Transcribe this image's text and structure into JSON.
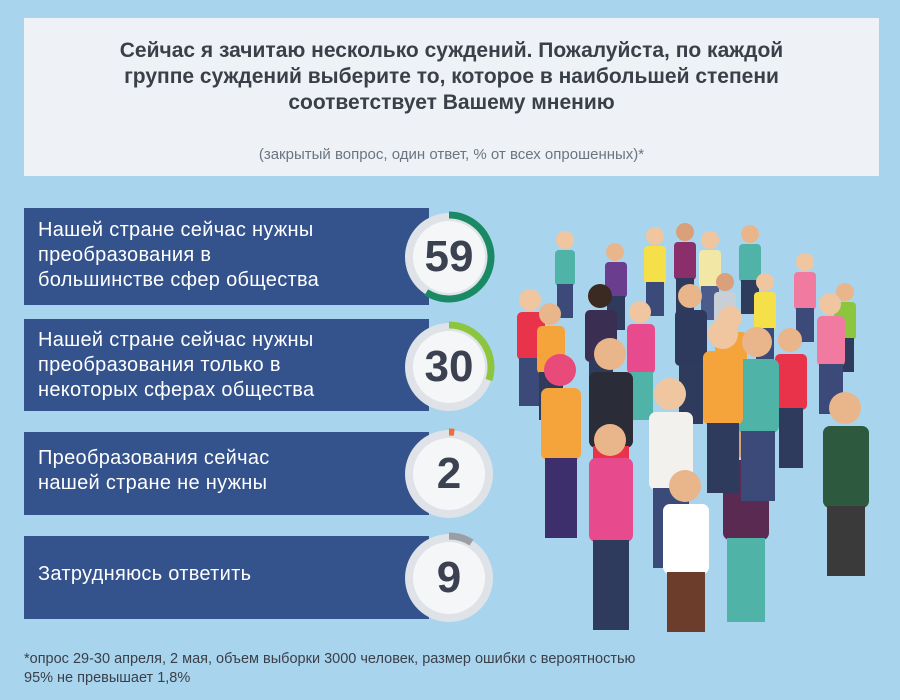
{
  "header": {
    "title": "Сейчас я зачитаю несколько суждений. Пожалуйста, по каждой\nгруппе суждений выберите то, которое в наибольшей степени\nсоответствует Вашему мнению",
    "subtitle": "(закрытый вопрос, один ответ, % от всех опрошенных)*"
  },
  "chart_data": {
    "type": "bar",
    "categories": [
      "Нашей стране сейчас нужны преобразования в большинстве сфер общества",
      "Нашей стране сейчас нужны преобразования только в некоторых сферах общества",
      "Преобразования сейчас нашей стране не нужны",
      "Затрудняюсь ответить"
    ],
    "values": [
      59,
      30,
      2,
      9
    ],
    "ring_colors": [
      "#1a8a64",
      "#8cc63f",
      "#f26b3a",
      "#9a9fa5"
    ]
  },
  "rows": [
    {
      "label": "Нашей стране сейчас нужны\nпреобразования в\nбольшинстве сфер общества",
      "value": "59"
    },
    {
      "label": "Нашей стране сейчас нужны\nпреобразования только в\nнекоторых сферах общества",
      "value": "30"
    },
    {
      "label": "Преобразования сейчас\nнашей стране не нужны",
      "value": "2"
    },
    {
      "label": "Затрудняюсь ответить",
      "value": "9"
    }
  ],
  "footnote": "*опрос 29-30 апреля, 2 мая, объем выборки 3000 человек, размер ошибки с вероятностью\n95% не превышает 1,8%",
  "crowd_illustration": "crowd-of-people-illustration"
}
